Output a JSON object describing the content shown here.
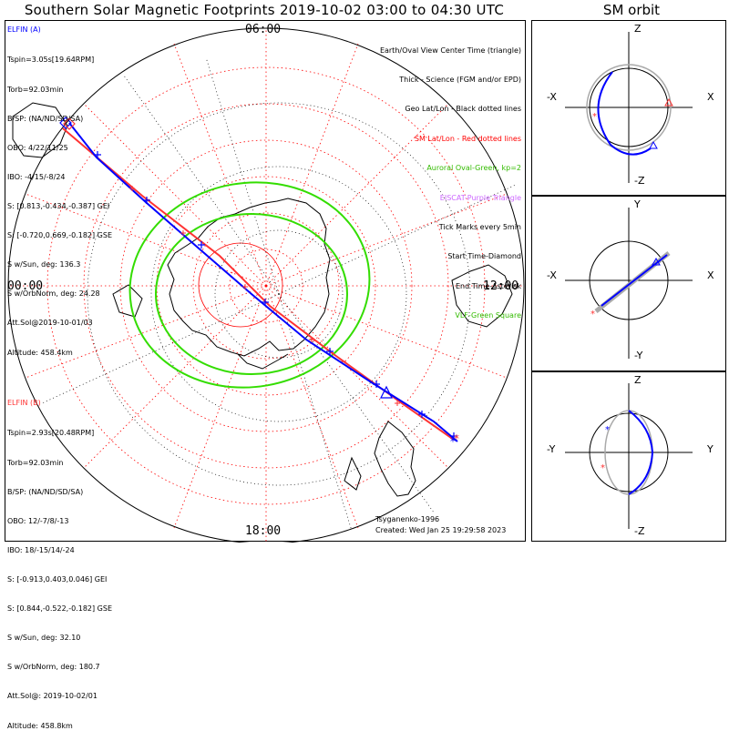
{
  "title": "Southern Solar Magnetic Footprints 2019-10-02 03:00 to 04:30 UTC",
  "sm_title": "SM orbit",
  "mlt_labels": {
    "top": "06:00",
    "left": "00:00",
    "right": "12:00",
    "bottom": "18:00"
  },
  "elfin_a": {
    "name": "ELFIN (A)",
    "lines": [
      "Tspin=3.05s[19.64RPM]",
      "Torb=92.03min",
      "B/SP: (NA/ND/SD/SA)",
      "OBO: 4/22/11/25",
      "IBO: -4/15/-8/24",
      "S: [0.813,-0.434,-0.387] GEI",
      "S: [-0.720,0.669,-0.182] GSE",
      "S w/Sun, deg: 136.3",
      "S w/OrbNorm, deg: 24.28",
      "Att.Sol@2019-10-01/03",
      "Altitude: 458.4km"
    ],
    "color": "#0000ff"
  },
  "elfin_b": {
    "name": "ELFIN (B)",
    "lines": [
      "Tspin=2.93s[20.48RPM]",
      "Torb=92.03min",
      "B/SP: (NA/ND/SD/SA)",
      "OBO: 12/-7/8/-13",
      "IBO: 18/-15/14/-24",
      "S: [-0.913,0.403,0.046] GEI",
      "S: [0.844,-0.522,-0.182] GSE",
      "S w/Sun, deg: 32.10",
      "S w/OrbNorm, deg: 180.7",
      "Att.Sol@: 2019-10-02/01",
      "Altitude: 458.8km"
    ],
    "color": "#ff3333"
  },
  "legend": [
    {
      "text": "Earth/Oval View Center Time (triangle)",
      "color": "#000000"
    },
    {
      "text": "Thick - Science (FGM and/or EPD)",
      "color": "#000000"
    },
    {
      "text": "Geo Lat/Lon - Black dotted lines",
      "color": "#000000"
    },
    {
      "text": "SM Lat/Lon - Red dotted lines",
      "color": "#ff0000"
    },
    {
      "text": "Auroral Oval-Green, kp=2",
      "color": "#33bb00"
    },
    {
      "text": "EISCAT-Purple Triangle",
      "color": "#cc66ff"
    },
    {
      "text": "Tick Marks every 5min",
      "color": "#000000"
    },
    {
      "text": "Start Time-Diamond",
      "color": "#000000"
    },
    {
      "text": "End Time-Asterisk",
      "color": "#000000"
    },
    {
      "text": "VLF-Green Square",
      "color": "#33bb00"
    }
  ],
  "footer": {
    "credit": "Tsyganenko-1996",
    "created": "Created: Wed Jan 25 19:29:58 2023"
  },
  "orbit_panels": [
    {
      "top": "Z",
      "bottom": "-Z",
      "left": "-X",
      "right": "X"
    },
    {
      "top": "Y",
      "bottom": "-Y",
      "left": "-X",
      "right": "X"
    },
    {
      "top": "Z",
      "bottom": "-Z",
      "left": "-Y",
      "right": "Y"
    }
  ],
  "colors": {
    "grid_sm": "#ff0000",
    "grid_geo": "#000000",
    "oval": "#33dd00",
    "track_a": "#0000ff",
    "track_b": "#ff3333",
    "orbit_gray": "#aaaaaa"
  }
}
